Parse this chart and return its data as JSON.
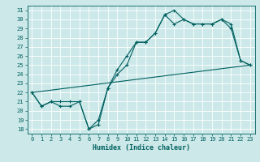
{
  "xlabel": "Humidex (Indice chaleur)",
  "bg_color": "#cce8e8",
  "grid_color": "#ffffff",
  "line_color": "#006060",
  "xlim": [
    -0.5,
    23.5
  ],
  "ylim": [
    17.5,
    31.5
  ],
  "xticks": [
    0,
    1,
    2,
    3,
    4,
    5,
    6,
    7,
    8,
    9,
    10,
    11,
    12,
    13,
    14,
    15,
    16,
    17,
    18,
    19,
    20,
    21,
    22,
    23
  ],
  "yticks": [
    18,
    19,
    20,
    21,
    22,
    23,
    24,
    25,
    26,
    27,
    28,
    29,
    30,
    31
  ],
  "series1": [
    22,
    20.5,
    21,
    21,
    21,
    21,
    18,
    18.5,
    22.5,
    24.5,
    26,
    27.5,
    27.5,
    28.5,
    30.5,
    29.5,
    30,
    29.5,
    29.5,
    29.5,
    30,
    29.5,
    25.5,
    25
  ],
  "series2": [
    22,
    20.5,
    21,
    20.5,
    20.5,
    21,
    18,
    19,
    22.5,
    24,
    25,
    27.5,
    27.5,
    28.5,
    30.5,
    31,
    30,
    29.5,
    29.5,
    29.5,
    30,
    29,
    25.5,
    25
  ],
  "series3_x": [
    0,
    23
  ],
  "series3_y": [
    22,
    25
  ]
}
